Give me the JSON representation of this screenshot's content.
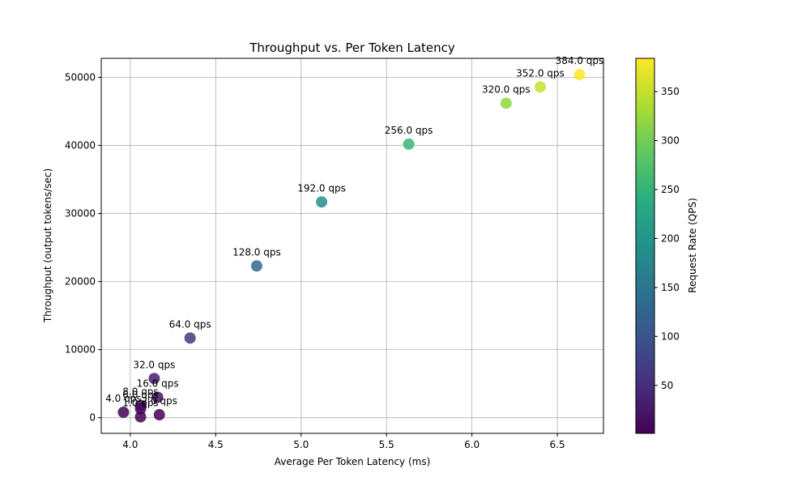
{
  "chart_data": {
    "type": "scatter",
    "title": "Throughput vs. Per Token Latency",
    "xlabel": "Average Per Token Latency (ms)",
    "ylabel": "Throughput (output tokens/sec)",
    "xlim": [
      3.83,
      6.77
    ],
    "ylim": [
      -2300,
      52800
    ],
    "xticks": [
      4.0,
      4.5,
      5.0,
      5.5,
      6.0,
      6.5
    ],
    "xtick_labels": [
      "4.0",
      "4.5",
      "5.0",
      "5.5",
      "6.0",
      "6.5"
    ],
    "yticks": [
      0,
      10000,
      20000,
      30000,
      40000,
      50000
    ],
    "ytick_labels": [
      "0",
      "10000",
      "20000",
      "30000",
      "40000",
      "50000"
    ],
    "grid": true,
    "colormap": "viridis",
    "colorbar": {
      "label": "Request Rate (QPS)",
      "range": [
        1,
        384
      ],
      "ticks": [
        50,
        100,
        150,
        200,
        250,
        300,
        350
      ],
      "tick_labels": [
        "50",
        "100",
        "150",
        "200",
        "250",
        "300",
        "350"
      ]
    },
    "points": [
      {
        "x": 4.06,
        "y": 130,
        "qps": 1,
        "label": "1.0 qps"
      },
      {
        "x": 4.17,
        "y": 430,
        "qps": 2,
        "label": "2.0 qps"
      },
      {
        "x": 3.96,
        "y": 800,
        "qps": 4,
        "label": "4.0 qps"
      },
      {
        "x": 4.06,
        "y": 1300,
        "qps": 6,
        "label": "6.0 qps"
      },
      {
        "x": 4.06,
        "y": 1800,
        "qps": 8,
        "label": "8.0 qps"
      },
      {
        "x": 4.16,
        "y": 3000,
        "qps": 16,
        "label": "16.0 qps"
      },
      {
        "x": 4.14,
        "y": 5750,
        "qps": 32,
        "label": "32.0 qps"
      },
      {
        "x": 4.35,
        "y": 11700,
        "qps": 64,
        "label": "64.0 qps"
      },
      {
        "x": 4.74,
        "y": 22300,
        "qps": 128,
        "label": "128.0 qps"
      },
      {
        "x": 5.12,
        "y": 31700,
        "qps": 192,
        "label": "192.0 qps"
      },
      {
        "x": 5.63,
        "y": 40200,
        "qps": 256,
        "label": "256.0 qps"
      },
      {
        "x": 6.2,
        "y": 46200,
        "qps": 320,
        "label": "320.0 qps"
      },
      {
        "x": 6.4,
        "y": 48600,
        "qps": 352,
        "label": "352.0 qps"
      },
      {
        "x": 6.63,
        "y": 50400,
        "qps": 384,
        "label": "384.0 qps"
      }
    ]
  }
}
